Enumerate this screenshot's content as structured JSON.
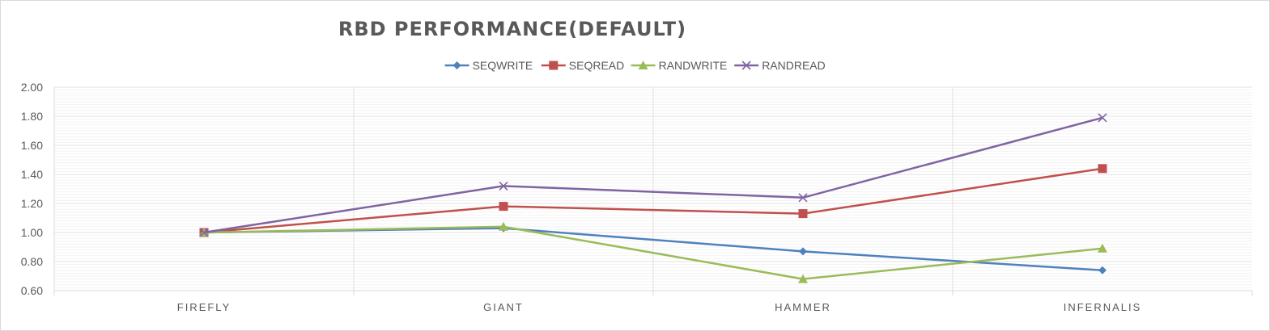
{
  "chart_data": {
    "type": "line",
    "title": "RBD PERFORMANCE(DEFAULT)",
    "categories": [
      "FIREFLY",
      "GIANT",
      "HAMMER",
      "INFERNALIS"
    ],
    "ylim": [
      0.6,
      2.0
    ],
    "yticks": [
      "0.60",
      "0.80",
      "1.00",
      "1.20",
      "1.40",
      "1.60",
      "1.80",
      "2.00"
    ],
    "major_step": 0.2,
    "minor_step": 0.02,
    "grid": true,
    "legend_position": "top",
    "series": [
      {
        "name": "SEQWRITE",
        "values": [
          1.0,
          1.03,
          0.87,
          0.74
        ],
        "color": "#4f81bd",
        "marker": "diamond"
      },
      {
        "name": "SEQREAD",
        "values": [
          1.0,
          1.18,
          1.13,
          1.44
        ],
        "color": "#c0504d",
        "marker": "square"
      },
      {
        "name": "RANDWRITE",
        "values": [
          1.0,
          1.04,
          0.68,
          0.89
        ],
        "color": "#9bbb59",
        "marker": "triangle"
      },
      {
        "name": "RANDREAD",
        "values": [
          1.0,
          1.32,
          1.24,
          1.79
        ],
        "color": "#8064a2",
        "marker": "x"
      }
    ]
  }
}
